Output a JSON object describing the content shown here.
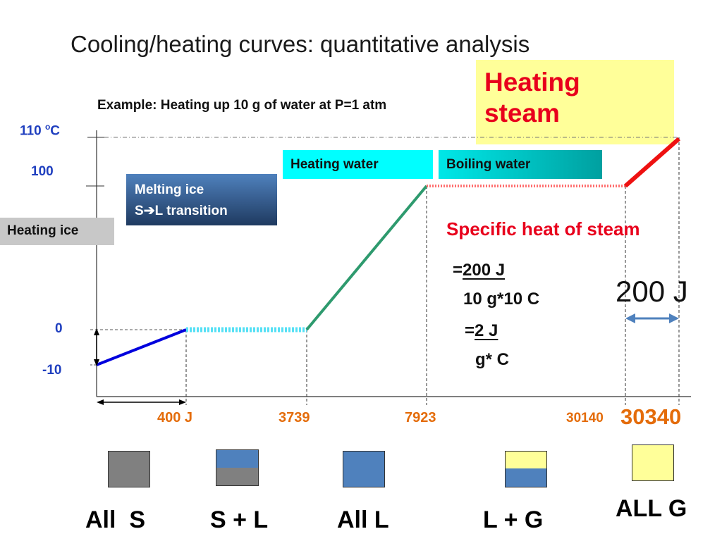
{
  "title": "Cooling/heating curves: quantitative analysis",
  "example": "Example: Heating up 10 g of water at P=1 atm",
  "y_labels": {
    "t110_num": "110 ",
    "t110_sup": "o",
    "t110_unit": "C",
    "t100": "100",
    "t0": "0",
    "tm10": "-10"
  },
  "x_labels": {
    "x400": "400 J",
    "x3739": "3739",
    "x7923": "7923",
    "x30140": "30140",
    "x30340": "30340"
  },
  "boxes": {
    "heating_steam_l1": "Heating",
    "heating_steam_l2": "steam",
    "heating_water": "Heating water",
    "boiling_water": "Boiling water",
    "melting_ice_l1": "Melting ice",
    "melting_ice_l2_a": "S",
    "melting_ice_l2_b": "L transition",
    "heating_ice": "Heating ice"
  },
  "annotations": {
    "specific_heat": "Specific heat of steam",
    "eq1_prefix": "=",
    "eq1_num": "200 J",
    "eq1_den": "10 g*10 C",
    "eq2_prefix": "=",
    "eq2_num": "2 J",
    "eq2_den": "g* C",
    "energy_200": "200 J"
  },
  "phases": [
    {
      "label": "All  S"
    },
    {
      "label": "S + L"
    },
    {
      "label": "All L"
    },
    {
      "label": "L + G"
    },
    {
      "label": "ALL G"
    }
  ],
  "colors": {
    "solid": "#808080",
    "liquid": "#4f81bd",
    "gas": "#ffff99",
    "ice_line": "#0000dd",
    "melt_line": "#55e0f5",
    "water_line": "#2e9a6e",
    "boil_line": "#ff7070",
    "steam_line": "#ee1111",
    "axis_label_blue": "#1f3fbf",
    "orange": "#e46c0a",
    "red_text": "#e8001c"
  },
  "chart_data": {
    "type": "line",
    "xlabel": "",
    "ylabel": "",
    "x_ticks": [
      "400 J",
      "3739",
      "7923",
      "30140",
      "30340"
    ],
    "y_ticks": [
      "110 oC",
      "100",
      "0",
      "-10"
    ],
    "x": [
      0,
      400,
      3739,
      7923,
      30140,
      30340
    ],
    "y": [
      -10,
      0,
      0,
      100,
      100,
      110
    ],
    "segments": [
      {
        "name": "Heating ice",
        "from": [
          0,
          -10
        ],
        "to": [
          400,
          0
        ]
      },
      {
        "name": "Melting ice",
        "from": [
          400,
          0
        ],
        "to": [
          3739,
          0
        ]
      },
      {
        "name": "Heating water",
        "from": [
          3739,
          0
        ],
        "to": [
          7923,
          100
        ]
      },
      {
        "name": "Boiling water",
        "from": [
          7923,
          100
        ],
        "to": [
          30140,
          100
        ]
      },
      {
        "name": "Heating steam",
        "from": [
          30140,
          100
        ],
        "to": [
          30340,
          110
        ]
      }
    ]
  }
}
